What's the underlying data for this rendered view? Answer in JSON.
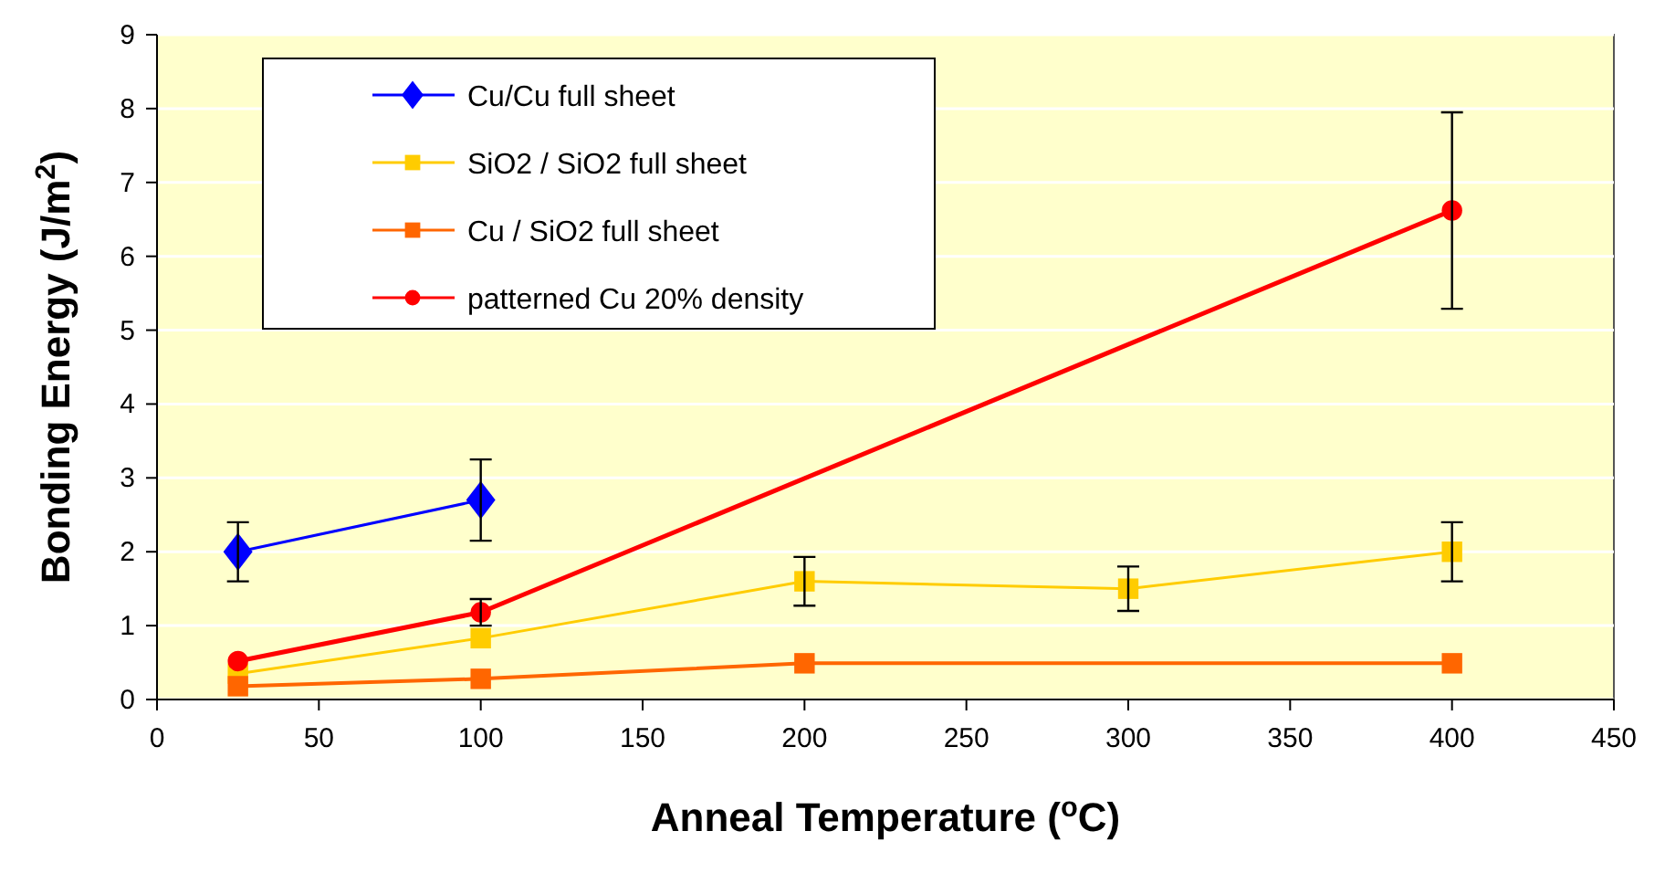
{
  "chart_data": {
    "type": "line",
    "xlabel": "Anneal Temperature ($^{o}$C)",
    "ylabel": "Bonding Energy (J/m$^{2}$)",
    "xlim": [
      0,
      450
    ],
    "xticks": [
      0,
      50,
      100,
      150,
      200,
      250,
      300,
      350,
      400,
      450
    ],
    "ylim": [
      0,
      9
    ],
    "yticks": [
      0,
      1,
      2,
      3,
      4,
      5,
      6,
      7,
      8,
      9
    ],
    "grid": "y",
    "legend": "top left",
    "series": [
      {
        "name": "Cu/Cu full sheet",
        "color": "#0000ff",
        "marker": "diamond",
        "x": [
          25,
          100
        ],
        "values": [
          2.0,
          2.7
        ],
        "errors": [
          0.4,
          0.55
        ]
      },
      {
        "name": "SiO2 / SiO2 full sheet",
        "color": "#ffcc00",
        "marker": "square",
        "x": [
          25,
          100,
          200,
          300,
          400
        ],
        "values": [
          0.35,
          0.83,
          1.6,
          1.5,
          2.0
        ],
        "errors": [
          null,
          null,
          0.33,
          0.3,
          0.4
        ]
      },
      {
        "name": "Cu / SiO2 full sheet",
        "color": "#ff6600",
        "marker": "square",
        "x": [
          25,
          100,
          200,
          400
        ],
        "values": [
          0.18,
          0.28,
          0.49,
          0.49
        ]
      },
      {
        "name": "patterned Cu 20% density",
        "color": "#ff0000",
        "marker": "circle",
        "x": [
          25,
          100,
          400
        ],
        "values": [
          0.52,
          1.18,
          6.62
        ],
        "errors": [
          null,
          0.18,
          1.33
        ]
      }
    ]
  }
}
